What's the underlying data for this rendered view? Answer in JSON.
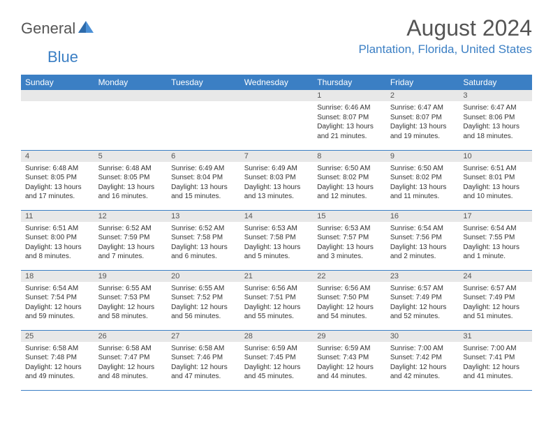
{
  "brand": {
    "word1": "General",
    "word2": "Blue"
  },
  "title": "August 2024",
  "location": "Plantation, Florida, United States",
  "colors": {
    "accent": "#3b7fc4",
    "header_text": "#555555",
    "daynum_bg": "#e8e8e8",
    "body_text": "#333333",
    "bg": "#ffffff"
  },
  "day_headers": [
    "Sunday",
    "Monday",
    "Tuesday",
    "Wednesday",
    "Thursday",
    "Friday",
    "Saturday"
  ],
  "weeks": [
    [
      null,
      null,
      null,
      null,
      {
        "n": "1",
        "sr": "Sunrise: 6:46 AM",
        "ss": "Sunset: 8:07 PM",
        "dl": "Daylight: 13 hours and 21 minutes."
      },
      {
        "n": "2",
        "sr": "Sunrise: 6:47 AM",
        "ss": "Sunset: 8:07 PM",
        "dl": "Daylight: 13 hours and 19 minutes."
      },
      {
        "n": "3",
        "sr": "Sunrise: 6:47 AM",
        "ss": "Sunset: 8:06 PM",
        "dl": "Daylight: 13 hours and 18 minutes."
      }
    ],
    [
      {
        "n": "4",
        "sr": "Sunrise: 6:48 AM",
        "ss": "Sunset: 8:05 PM",
        "dl": "Daylight: 13 hours and 17 minutes."
      },
      {
        "n": "5",
        "sr": "Sunrise: 6:48 AM",
        "ss": "Sunset: 8:05 PM",
        "dl": "Daylight: 13 hours and 16 minutes."
      },
      {
        "n": "6",
        "sr": "Sunrise: 6:49 AM",
        "ss": "Sunset: 8:04 PM",
        "dl": "Daylight: 13 hours and 15 minutes."
      },
      {
        "n": "7",
        "sr": "Sunrise: 6:49 AM",
        "ss": "Sunset: 8:03 PM",
        "dl": "Daylight: 13 hours and 13 minutes."
      },
      {
        "n": "8",
        "sr": "Sunrise: 6:50 AM",
        "ss": "Sunset: 8:02 PM",
        "dl": "Daylight: 13 hours and 12 minutes."
      },
      {
        "n": "9",
        "sr": "Sunrise: 6:50 AM",
        "ss": "Sunset: 8:02 PM",
        "dl": "Daylight: 13 hours and 11 minutes."
      },
      {
        "n": "10",
        "sr": "Sunrise: 6:51 AM",
        "ss": "Sunset: 8:01 PM",
        "dl": "Daylight: 13 hours and 10 minutes."
      }
    ],
    [
      {
        "n": "11",
        "sr": "Sunrise: 6:51 AM",
        "ss": "Sunset: 8:00 PM",
        "dl": "Daylight: 13 hours and 8 minutes."
      },
      {
        "n": "12",
        "sr": "Sunrise: 6:52 AM",
        "ss": "Sunset: 7:59 PM",
        "dl": "Daylight: 13 hours and 7 minutes."
      },
      {
        "n": "13",
        "sr": "Sunrise: 6:52 AM",
        "ss": "Sunset: 7:58 PM",
        "dl": "Daylight: 13 hours and 6 minutes."
      },
      {
        "n": "14",
        "sr": "Sunrise: 6:53 AM",
        "ss": "Sunset: 7:58 PM",
        "dl": "Daylight: 13 hours and 5 minutes."
      },
      {
        "n": "15",
        "sr": "Sunrise: 6:53 AM",
        "ss": "Sunset: 7:57 PM",
        "dl": "Daylight: 13 hours and 3 minutes."
      },
      {
        "n": "16",
        "sr": "Sunrise: 6:54 AM",
        "ss": "Sunset: 7:56 PM",
        "dl": "Daylight: 13 hours and 2 minutes."
      },
      {
        "n": "17",
        "sr": "Sunrise: 6:54 AM",
        "ss": "Sunset: 7:55 PM",
        "dl": "Daylight: 13 hours and 1 minute."
      }
    ],
    [
      {
        "n": "18",
        "sr": "Sunrise: 6:54 AM",
        "ss": "Sunset: 7:54 PM",
        "dl": "Daylight: 12 hours and 59 minutes."
      },
      {
        "n": "19",
        "sr": "Sunrise: 6:55 AM",
        "ss": "Sunset: 7:53 PM",
        "dl": "Daylight: 12 hours and 58 minutes."
      },
      {
        "n": "20",
        "sr": "Sunrise: 6:55 AM",
        "ss": "Sunset: 7:52 PM",
        "dl": "Daylight: 12 hours and 56 minutes."
      },
      {
        "n": "21",
        "sr": "Sunrise: 6:56 AM",
        "ss": "Sunset: 7:51 PM",
        "dl": "Daylight: 12 hours and 55 minutes."
      },
      {
        "n": "22",
        "sr": "Sunrise: 6:56 AM",
        "ss": "Sunset: 7:50 PM",
        "dl": "Daylight: 12 hours and 54 minutes."
      },
      {
        "n": "23",
        "sr": "Sunrise: 6:57 AM",
        "ss": "Sunset: 7:49 PM",
        "dl": "Daylight: 12 hours and 52 minutes."
      },
      {
        "n": "24",
        "sr": "Sunrise: 6:57 AM",
        "ss": "Sunset: 7:49 PM",
        "dl": "Daylight: 12 hours and 51 minutes."
      }
    ],
    [
      {
        "n": "25",
        "sr": "Sunrise: 6:58 AM",
        "ss": "Sunset: 7:48 PM",
        "dl": "Daylight: 12 hours and 49 minutes."
      },
      {
        "n": "26",
        "sr": "Sunrise: 6:58 AM",
        "ss": "Sunset: 7:47 PM",
        "dl": "Daylight: 12 hours and 48 minutes."
      },
      {
        "n": "27",
        "sr": "Sunrise: 6:58 AM",
        "ss": "Sunset: 7:46 PM",
        "dl": "Daylight: 12 hours and 47 minutes."
      },
      {
        "n": "28",
        "sr": "Sunrise: 6:59 AM",
        "ss": "Sunset: 7:45 PM",
        "dl": "Daylight: 12 hours and 45 minutes."
      },
      {
        "n": "29",
        "sr": "Sunrise: 6:59 AM",
        "ss": "Sunset: 7:43 PM",
        "dl": "Daylight: 12 hours and 44 minutes."
      },
      {
        "n": "30",
        "sr": "Sunrise: 7:00 AM",
        "ss": "Sunset: 7:42 PM",
        "dl": "Daylight: 12 hours and 42 minutes."
      },
      {
        "n": "31",
        "sr": "Sunrise: 7:00 AM",
        "ss": "Sunset: 7:41 PM",
        "dl": "Daylight: 12 hours and 41 minutes."
      }
    ]
  ]
}
